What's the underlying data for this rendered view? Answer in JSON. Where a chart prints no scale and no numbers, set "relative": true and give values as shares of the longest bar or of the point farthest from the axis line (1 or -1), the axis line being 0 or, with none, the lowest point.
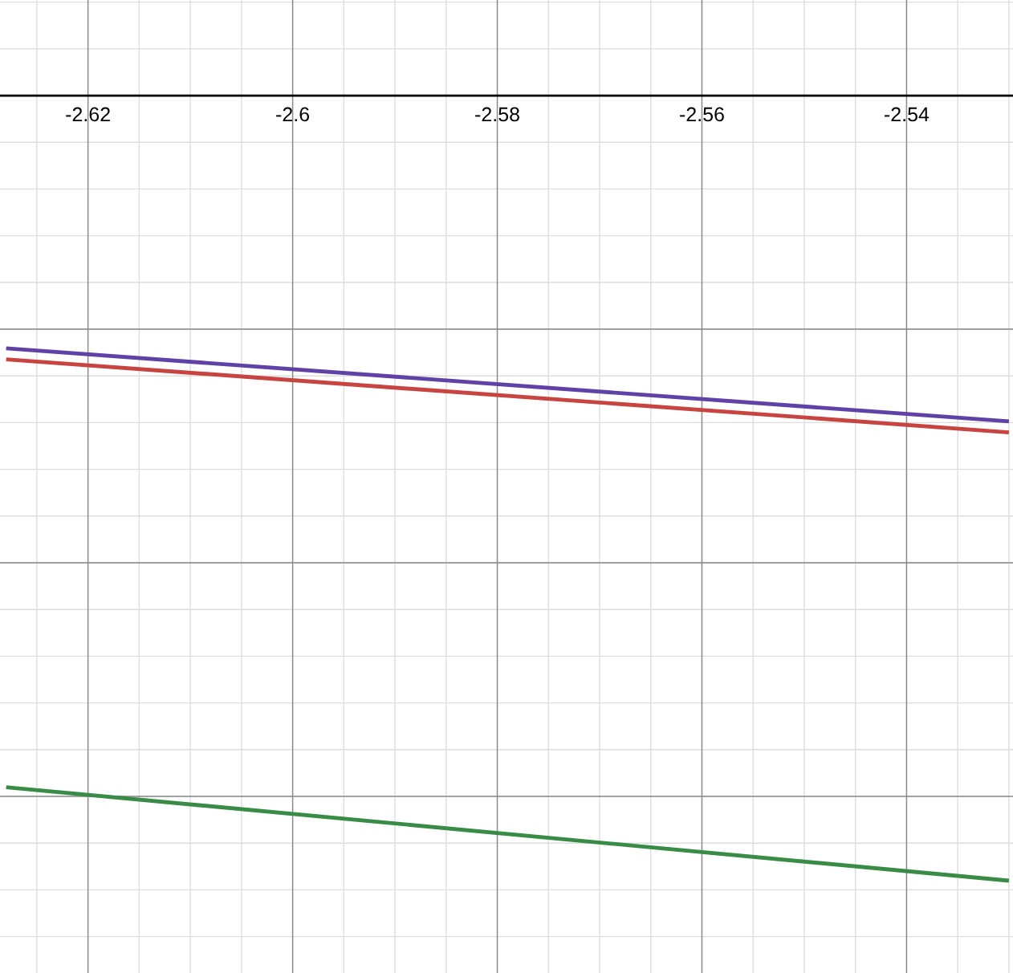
{
  "chart_data": {
    "type": "line",
    "relative": true,
    "tick_labels": "x",
    "grid": true,
    "legend": false,
    "xlim": [
      -2.6286,
      -2.5296
    ],
    "xticks": [
      -2.62,
      -2.6,
      -2.58,
      -2.56,
      -2.54
    ],
    "x": [
      -2.628,
      -2.53
    ],
    "series": [
      {
        "color": "#6042a6",
        "values": [
          -0.322,
          -0.415
        ]
      },
      {
        "color": "#c74440",
        "values": [
          -0.336,
          -0.429
        ]
      },
      {
        "color": "#388c46",
        "values": [
          -0.881,
          -1
        ]
      }
    ]
  }
}
